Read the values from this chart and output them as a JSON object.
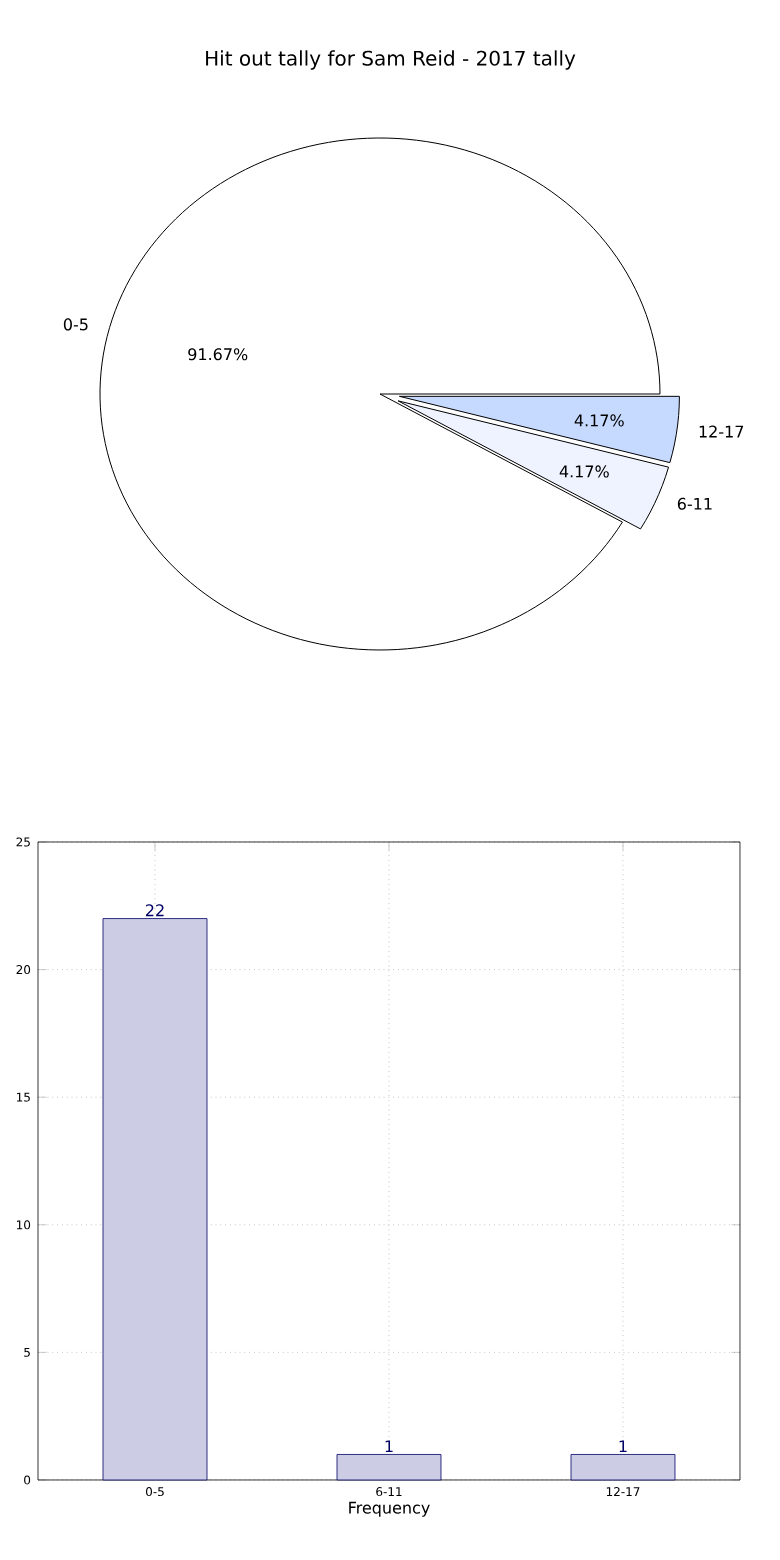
{
  "chart_data": [
    {
      "type": "pie",
      "title": "Hit out tally for Sam Reid - 2017 tally",
      "categories": [
        "0-5",
        "6-11",
        "12-17"
      ],
      "values": [
        91.67,
        4.17,
        4.17
      ],
      "value_labels": [
        "91.67%",
        "4.17%",
        "4.17%"
      ],
      "colors": [
        "#ffffff",
        "#eef3ff",
        "#c6d9ff"
      ]
    },
    {
      "type": "bar",
      "categories": [
        "0-5",
        "6-11",
        "12-17"
      ],
      "values": [
        22,
        1,
        1
      ],
      "color": "#cccce5",
      "xlabel": "Frequency",
      "ylim": [
        0,
        25
      ],
      "yticks": [
        0,
        5,
        10,
        15,
        20,
        25
      ],
      "grid": true,
      "data_labels": true
    }
  ]
}
